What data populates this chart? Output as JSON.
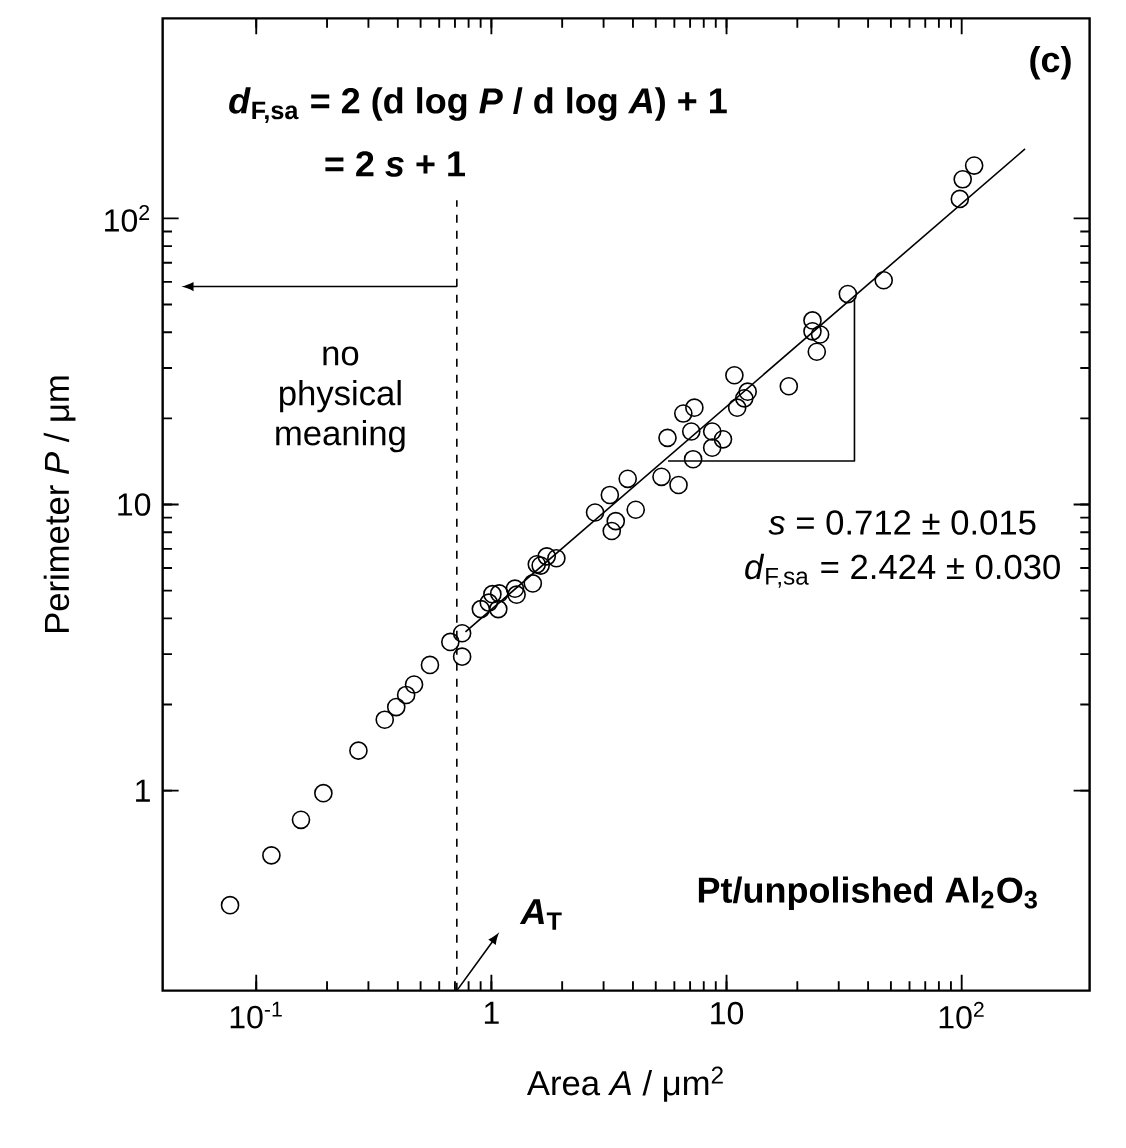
{
  "chart_data": {
    "type": "scatter",
    "xlabel": "Area *A* / μm$^{2}$",
    "ylabel": "Perimeter *P* / μm",
    "xlim": [
      0.04,
      350
    ],
    "ylim": [
      0.2,
      500
    ],
    "xticks": [
      {
        "value": 0.1,
        "label": "10$^{-1}$"
      },
      1,
      10,
      {
        "value": 100,
        "label": "10$^{2}$"
      }
    ],
    "yticks": [
      1,
      10,
      {
        "value": 100,
        "label": "10$^{2}$"
      }
    ],
    "log": "xy",
    "grid": false,
    "marker": "circle",
    "series": [
      {
        "color": "#000000",
        "x": [
          0.0774,
          0.116,
          0.155,
          0.193,
          0.272,
          0.352,
          0.394,
          0.434,
          0.469,
          0.548,
          0.669,
          0.751,
          0.751,
          0.902,
          0.975,
          1.01,
          1.07,
          1.08,
          1.26,
          1.28,
          1.5,
          1.56,
          1.62,
          1.72,
          1.89,
          2.76,
          3.19,
          3.25,
          3.38,
          3.8,
          4.11,
          5.29,
          6.25,
          5.61,
          7.21,
          6.55,
          7.3,
          7.08,
          8.69,
          8.69,
          9.66,
          11.1,
          10.8,
          12.3,
          11.9,
          18.4,
          23.2,
          23.2,
          25.0,
          24.2,
          32.8,
          46.6,
          98.2,
          101,
          113
        ],
        "values": [
          0.398,
          0.594,
          0.791,
          0.98,
          1.38,
          1.77,
          1.96,
          2.16,
          2.35,
          2.75,
          3.31,
          3.55,
          2.94,
          4.31,
          4.54,
          4.86,
          4.31,
          4.89,
          5.08,
          4.84,
          5.3,
          6.18,
          6.12,
          6.59,
          6.49,
          9.38,
          10.8,
          8.08,
          8.75,
          12.3,
          9.59,
          12.5,
          11.7,
          17.1,
          14.4,
          20.8,
          21.8,
          18.0,
          18.0,
          15.8,
          16.9,
          21.8,
          28.3,
          24.8,
          23.5,
          25.9,
          44.0,
          40.3,
          39.3,
          34.2,
          54.4,
          60.8,
          117,
          137,
          153
        ]
      },
      {
        "type": "line",
        "color": "#000000",
        "marker": "none",
        "x": [
          0.776,
          186
        ],
        "values": [
          3.59,
          175
        ]
      },
      {
        "type": "line",
        "color": "#000000",
        "marker": "none",
        "x": [
          5.64,
          35.0,
          35.0
        ],
        "values": [
          14.2,
          14.2,
          52.7
        ]
      }
    ],
    "ref_lines": [
      {
        "axis": "x",
        "value": 0.713,
        "line_style": "dashed",
        "color": "#000000"
      }
    ],
    "annotations": [
      "*d*$_{F,sa}$ = 2 (d log *P* / d log *A*) + 1",
      "= 2 *s* + 1",
      "(c)",
      "no physical meaning",
      "*s* = 0.712 ± 0.015",
      "*d*$_{F,sa}$ = 2.424 ± 0.030",
      "Pt/unpolished Al$_{2}$O$_{3}$",
      "*A*$_{T}$"
    ]
  }
}
